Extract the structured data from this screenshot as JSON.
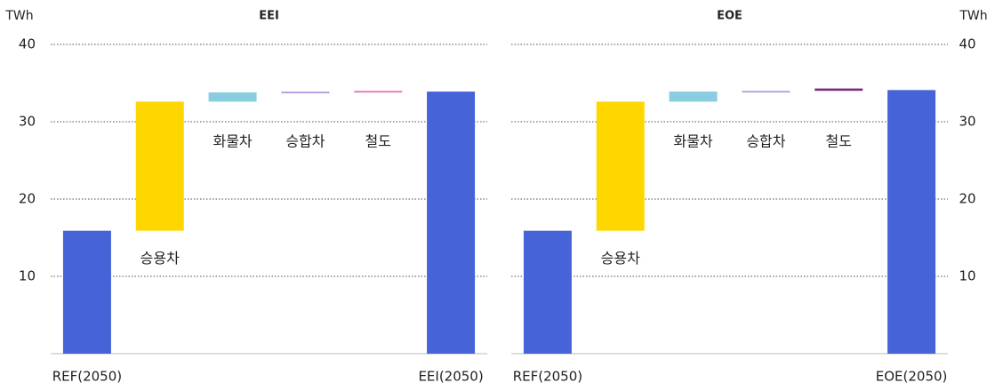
{
  "chart_data": [
    {
      "type": "waterfall",
      "title": "EEI",
      "y_label": "TWh",
      "axis_side": "left",
      "categories": [
        "REF(2050)",
        "승용차",
        "화물차",
        "승합차",
        "철도",
        "EEI(2050)"
      ],
      "measure": [
        "absolute",
        "relative",
        "relative",
        "relative",
        "relative",
        "total"
      ],
      "values": [
        15.9,
        16.7,
        1.2,
        0.1,
        0.1,
        33.9
      ],
      "colors": [
        "#4763d8",
        "#ffd700",
        "#89cde0",
        "#b7a2e6",
        "#e07fc2",
        "#4763d8"
      ],
      "ylim": [
        0,
        40
      ],
      "yticks": [
        10,
        20,
        30,
        40
      ],
      "grid": true
    },
    {
      "type": "waterfall",
      "title": "EOE",
      "y_label": "TWh",
      "axis_side": "right",
      "categories": [
        "REF(2050)",
        "승용차",
        "화물차",
        "승합차",
        "철도",
        "EOE(2050)"
      ],
      "measure": [
        "absolute",
        "relative",
        "relative",
        "relative",
        "relative",
        "total"
      ],
      "values": [
        15.9,
        16.7,
        1.3,
        0.1,
        0.3,
        34.1
      ],
      "colors": [
        "#4763d8",
        "#ffd700",
        "#89cde0",
        "#b7a2e6",
        "#7a2a80",
        "#4763d8"
      ],
      "ylim": [
        0,
        40
      ],
      "yticks": [
        10,
        20,
        30,
        40
      ],
      "grid": true
    }
  ]
}
